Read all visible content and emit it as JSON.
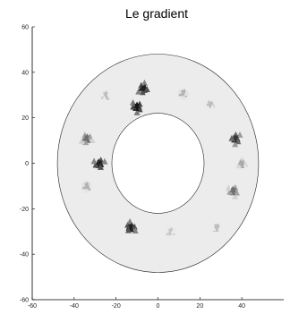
{
  "chart_data": {
    "type": "heatmap",
    "title": "Le gradient",
    "xlabel": "",
    "ylabel": "",
    "xlim": [
      -60,
      60
    ],
    "ylim": [
      -60,
      60
    ],
    "xticks": [
      -60,
      -40,
      -20,
      0,
      20,
      40
    ],
    "yticks": [
      -60,
      -40,
      -20,
      0,
      20,
      40,
      60
    ],
    "domain": {
      "shape": "annulus",
      "center": [
        0,
        0
      ],
      "outer_radius": 48,
      "inner_radius": 22
    },
    "colormap": "gray",
    "background_value": "#ececec",
    "hotspots": [
      {
        "x": -10,
        "y": 25,
        "intensity": 0.95
      },
      {
        "x": -7,
        "y": 33,
        "intensity": 0.9
      },
      {
        "x": -28,
        "y": 0,
        "intensity": 0.9
      },
      {
        "x": -13,
        "y": -28,
        "intensity": 0.9
      },
      {
        "x": 37,
        "y": 11,
        "intensity": 0.8
      },
      {
        "x": -34,
        "y": 11,
        "intensity": 0.55
      },
      {
        "x": 36,
        "y": -12,
        "intensity": 0.55
      },
      {
        "x": 12,
        "y": 31,
        "intensity": 0.25
      },
      {
        "x": 25,
        "y": 26,
        "intensity": 0.2
      },
      {
        "x": -25,
        "y": 30,
        "intensity": 0.2
      },
      {
        "x": 28,
        "y": -28,
        "intensity": 0.2
      },
      {
        "x": -34,
        "y": -10,
        "intensity": 0.25
      },
      {
        "x": 40,
        "y": 0,
        "intensity": 0.3
      },
      {
        "x": 6,
        "y": -30,
        "intensity": 0.15
      }
    ]
  }
}
